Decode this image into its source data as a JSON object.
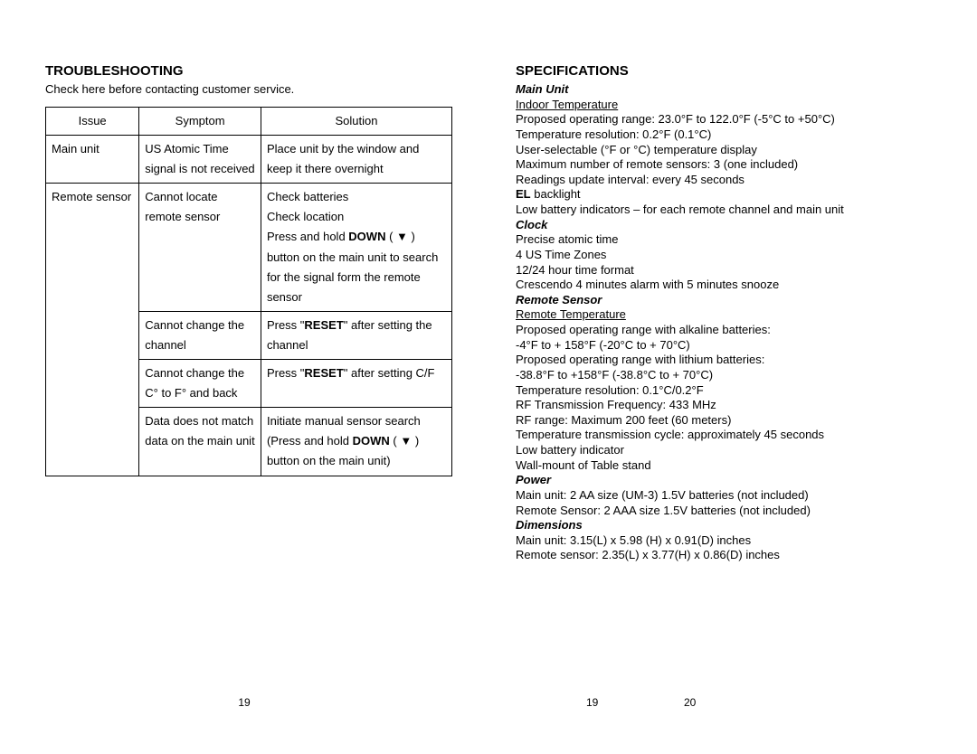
{
  "left": {
    "title": "TROUBLESHOOTING",
    "subtitle": "Check here before contacting customer service.",
    "headers": {
      "issue": "Issue",
      "symptom": "Symptom",
      "solution": "Solution"
    },
    "rows": [
      {
        "issue": "Main unit",
        "symptom": "US Atomic Time signal is not received",
        "solution": "Place unit by the window and keep it there overnight"
      },
      {
        "issue": "Remote sensor",
        "symptom": "Cannot locate remote sensor",
        "solution_html": "Check batteries<br>Check location<br>Press and hold <b>DOWN</b> ( ▼ ) button on the main unit to search for the signal form the remote sensor",
        "rowspan_issue": 4
      },
      {
        "symptom": "Cannot change the channel",
        "solution_html": "Press \"<b>RESET</b>\" after setting the channel"
      },
      {
        "symptom": "Cannot change the C° to F° and back",
        "solution_html": "Press \"<b>RESET</b>\" after setting C/F"
      },
      {
        "symptom": "Data does not match data on the main unit",
        "solution_html": "Initiate manual sensor search (Press and hold <b>DOWN</b> ( ▼ ) button on the main unit)"
      }
    ],
    "page_num": "19"
  },
  "right": {
    "title": "SPECIFICATIONS",
    "sections": [
      {
        "heading": "Main Unit",
        "groups": [
          {
            "subheading": "Indoor Temperature",
            "lines": [
              "Proposed operating range: 23.0°F to 122.0°F (-5°C to +50°C)",
              "Temperature resolution: 0.2°F (0.1°C)",
              "User-selectable (°F or °C) temperature display",
              "Maximum number of remote sensors: 3 (one included)",
              "Readings update interval: every 45 seconds",
              "<b>EL</b> backlight",
              "Low battery indicators – for each remote channel and main unit"
            ]
          }
        ]
      },
      {
        "heading": "Clock",
        "groups": [
          {
            "lines": [
              "Precise atomic time",
              "4 US Time Zones",
              "12/24 hour time format",
              "Crescendo 4 minutes alarm with 5 minutes snooze"
            ]
          }
        ]
      },
      {
        "heading": "Remote Sensor",
        "groups": [
          {
            "subheading": "Remote Temperature",
            "lines": [
              "Proposed operating range with alkaline batteries:",
              "-4°F to + 158°F (-20°C to + 70°C)",
              "Proposed operating range with lithium batteries:",
              "-38.8°F to +158°F (-38.8°C to + 70°C)",
              "Temperature resolution: 0.1°C/0.2°F",
              "RF Transmission Frequency: 433 MHz",
              "RF range: Maximum 200 feet (60 meters)",
              "Temperature transmission cycle: approximately 45 seconds",
              "Low battery indicator",
              "Wall-mount of Table stand"
            ]
          }
        ]
      },
      {
        "heading": "Power",
        "groups": [
          {
            "lines": [
              "Main unit: 2 AA size (UM-3) 1.5V batteries (not included)",
              "Remote Sensor: 2 AAA size 1.5V batteries (not included)"
            ]
          }
        ]
      },
      {
        "heading": "Dimensions",
        "groups": [
          {
            "lines": [
              "Main unit: 3.15(L) x 5.98 (H) x 0.91(D) inches",
              "Remote sensor: 2.35(L) x 3.77(H) x 0.86(D) inches"
            ]
          }
        ]
      }
    ],
    "page_num_left": "19",
    "page_num_right": "20"
  }
}
